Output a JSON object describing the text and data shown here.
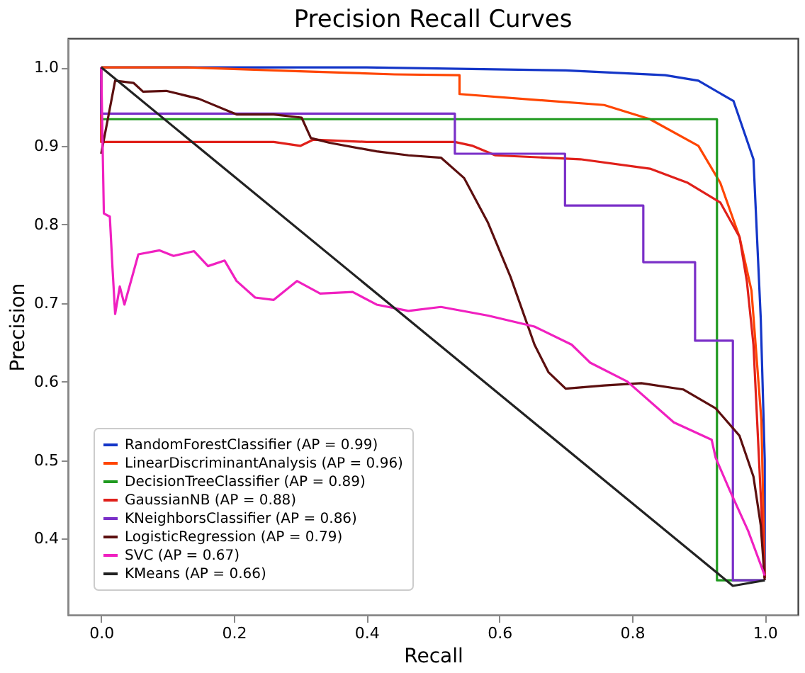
{
  "chart_data": {
    "type": "line",
    "title": "Precision Recall Curves",
    "xlabel": "Recall",
    "ylabel": "Precision",
    "xlim": [
      -0.05,
      1.05
    ],
    "ylim": [
      0.303,
      1.037
    ],
    "xticks": [
      {
        "value": 0,
        "label": "0.0"
      },
      0.2,
      0.4,
      0.6,
      0.8,
      {
        "value": 1,
        "label": "1.0"
      }
    ],
    "yticks": [
      0.4,
      0.5,
      0.6,
      0.7,
      0.8,
      0.9,
      {
        "value": 1,
        "label": "1.0"
      }
    ],
    "grid": false,
    "legend": "bottom left",
    "series": [
      {
        "name": "RandomForestClassifier (AP = 0.99)",
        "color": "#1436c8",
        "x": [
          0,
          0.4,
          0.7,
          0.85,
          0.9,
          0.953,
          0.983,
          0.994,
          1.0,
          1.0
        ],
        "values": [
          1.0,
          1.0,
          0.996,
          0.99,
          0.983,
          0.957,
          0.883,
          0.68,
          0.5,
          0.35
        ]
      },
      {
        "name": "LinearDiscriminantAnalysis (AP = 0.96)",
        "color": "#ff4500",
        "x": [
          0,
          0.13,
          0.3,
          0.442,
          0.54,
          0.54,
          0.758,
          0.827,
          0.9,
          0.933,
          0.962,
          0.98,
          0.995,
          1.0
        ],
        "values": [
          1.0,
          1.0,
          0.995,
          0.991,
          0.99,
          0.966,
          0.952,
          0.934,
          0.9,
          0.853,
          0.784,
          0.716,
          0.55,
          0.35
        ]
      },
      {
        "name": "DecisionTreeClassifier (AP = 0.89)",
        "color": "#1f9a1f",
        "x": [
          0,
          0,
          0.928,
          0.928,
          1.0
        ],
        "values": [
          1.0,
          0.934,
          0.934,
          0.347,
          0.347
        ]
      },
      {
        "name": "GaussianNB (AP = 0.88)",
        "color": "#e0201a",
        "x": [
          0,
          0,
          0.26,
          0.3,
          0.32,
          0.4,
          0.533,
          0.56,
          0.594,
          0.722,
          0.827,
          0.884,
          0.933,
          0.962,
          0.973,
          0.983,
          1.0
        ],
        "values": [
          1.0,
          0.905,
          0.905,
          0.9,
          0.908,
          0.905,
          0.905,
          0.9,
          0.888,
          0.883,
          0.871,
          0.853,
          0.828,
          0.784,
          0.728,
          0.647,
          0.35
        ]
      },
      {
        "name": "KNeighborsClassifier (AP = 0.86)",
        "color": "#7a2fc8",
        "x": [
          0,
          0,
          0.533,
          0.533,
          0.699,
          0.699,
          0.817,
          0.817,
          0.895,
          0.895,
          0.952,
          0.952,
          1.0
        ],
        "values": [
          1.0,
          0.941,
          0.941,
          0.89,
          0.89,
          0.824,
          0.824,
          0.752,
          0.752,
          0.652,
          0.652,
          0.347,
          0.347
        ]
      },
      {
        "name": "LogisticRegression (AP = 0.79)",
        "color": "#5c0f0f",
        "x": [
          0,
          0.021,
          0.049,
          0.063,
          0.098,
          0.147,
          0.204,
          0.26,
          0.302,
          0.316,
          0.344,
          0.415,
          0.463,
          0.512,
          0.547,
          0.583,
          0.617,
          0.653,
          0.674,
          0.7,
          0.758,
          0.814,
          0.877,
          0.926,
          0.962,
          0.983,
          0.994,
          1.0
        ],
        "values": [
          0.89,
          0.983,
          0.98,
          0.969,
          0.97,
          0.96,
          0.94,
          0.94,
          0.936,
          0.91,
          0.904,
          0.893,
          0.888,
          0.885,
          0.859,
          0.802,
          0.733,
          0.647,
          0.612,
          0.591,
          0.595,
          0.598,
          0.59,
          0.566,
          0.531,
          0.479,
          0.417,
          0.347
        ]
      },
      {
        "name": "SVC (AP = 0.67)",
        "color": "#f020c0",
        "x": [
          0,
          0.004,
          0.013,
          0.017,
          0.021,
          0.028,
          0.035,
          0.056,
          0.088,
          0.109,
          0.14,
          0.161,
          0.186,
          0.204,
          0.232,
          0.26,
          0.295,
          0.33,
          0.379,
          0.415,
          0.463,
          0.512,
          0.583,
          0.653,
          0.709,
          0.737,
          0.793,
          0.863,
          0.92,
          0.926,
          0.947,
          0.975,
          1.0
        ],
        "values": [
          1.0,
          0.814,
          0.81,
          0.745,
          0.686,
          0.721,
          0.698,
          0.762,
          0.767,
          0.76,
          0.766,
          0.747,
          0.754,
          0.728,
          0.707,
          0.704,
          0.728,
          0.712,
          0.714,
          0.698,
          0.69,
          0.695,
          0.684,
          0.67,
          0.647,
          0.624,
          0.6,
          0.548,
          0.526,
          0.503,
          0.462,
          0.41,
          0.353
        ]
      },
      {
        "name": "KMeans (AP = 0.66)",
        "color": "#222222",
        "x": [
          0,
          0.952,
          1.0
        ],
        "values": [
          1.0,
          0.34,
          0.347
        ]
      }
    ]
  }
}
